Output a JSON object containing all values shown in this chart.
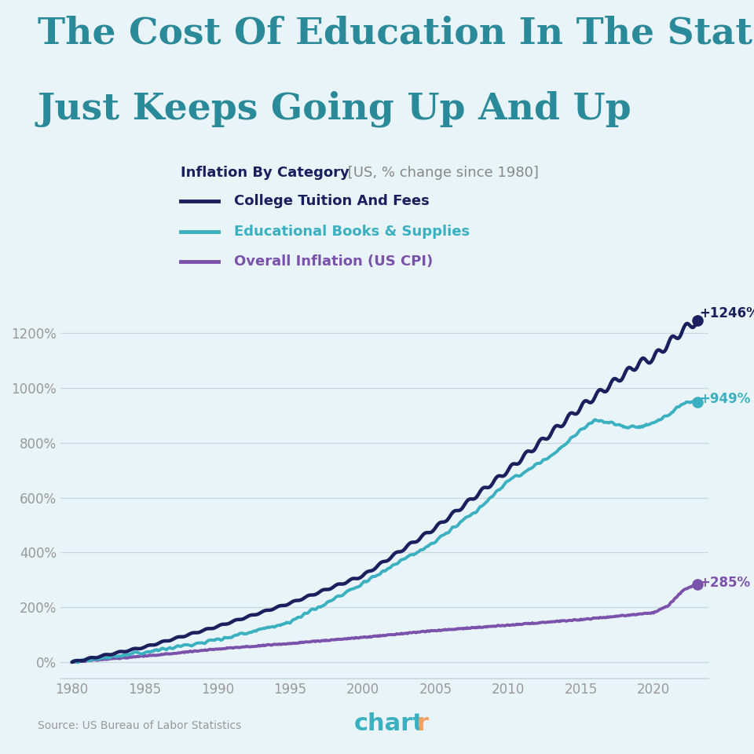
{
  "title_line1": "The Cost Of Education In The States",
  "title_line2": "Just Keeps Going Up And Up",
  "subtitle_bold": "Inflation By Category",
  "subtitle_light": " [US, % change since 1980]",
  "bg_color": "#e8f4f8",
  "title_color": "#2a8a9a",
  "college_color": "#1a1f5e",
  "books_color": "#3ab0c0",
  "cpi_color": "#7b52ab",
  "legend_title_color": "#1a1f5e",
  "source_text": "Source: US Bureau of Labor Statistics",
  "chartr_color_main": "#3ab0c0",
  "chartr_color_r": "#f4a261",
  "end_label_1246": "+1246%",
  "end_label_949": "+949%",
  "end_label_285": "+285%",
  "ylim": [
    -60,
    1370
  ],
  "yticks": [
    0,
    200,
    400,
    600,
    800,
    1000,
    1200
  ],
  "ytick_labels": [
    "0%",
    "200%",
    "400%",
    "600%",
    "800%",
    "1000%",
    "1200%"
  ],
  "xlabel_years": [
    1980,
    1985,
    1990,
    1995,
    2000,
    2005,
    2010,
    2015,
    2020
  ],
  "college_anchors_x": [
    1980,
    1985,
    1990,
    1995,
    2000,
    2005,
    2010,
    2015,
    2019,
    2020,
    2021,
    2022,
    2023
  ],
  "college_anchors_y": [
    0,
    55,
    130,
    215,
    315,
    490,
    700,
    930,
    1090,
    1110,
    1160,
    1210,
    1246
  ],
  "books_anchors_x": [
    1980,
    1985,
    1990,
    1995,
    2000,
    2005,
    2008,
    2010,
    2013,
    2015,
    2016,
    2017,
    2018,
    2019,
    2020,
    2021,
    2022,
    2023
  ],
  "books_anchors_y": [
    0,
    35,
    80,
    145,
    285,
    440,
    560,
    660,
    750,
    845,
    885,
    870,
    860,
    855,
    870,
    900,
    940,
    949
  ],
  "cpi_anchors_x": [
    1980,
    1985,
    1990,
    1995,
    2000,
    2005,
    2010,
    2015,
    2019,
    2020,
    2021,
    2022,
    2023
  ],
  "cpi_anchors_y": [
    0,
    22,
    48,
    68,
    90,
    115,
    135,
    155,
    175,
    180,
    205,
    260,
    285
  ]
}
